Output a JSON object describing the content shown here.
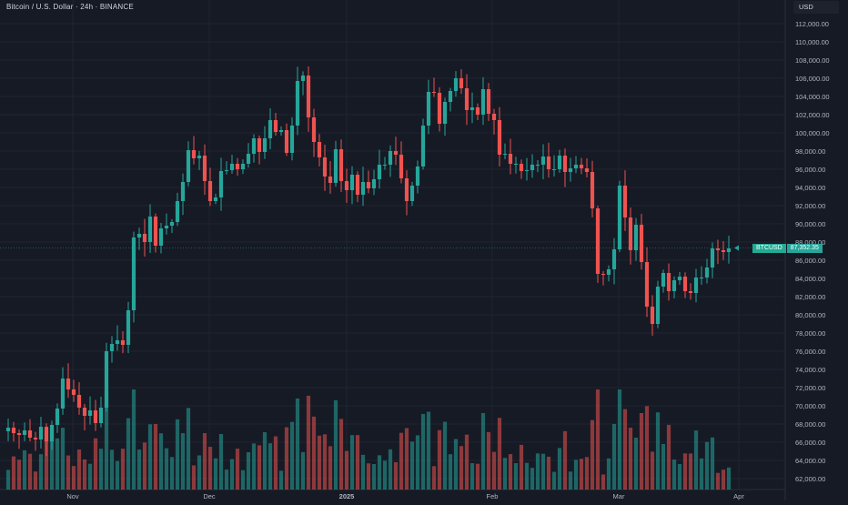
{
  "header": {
    "title": "Bitcoin / U.S. Dollar · 24h · BINANCE",
    "currency": "USD"
  },
  "price_tag": {
    "symbol": "BTCUSD",
    "value": "87,352.35"
  },
  "colors": {
    "background": "#161a25",
    "up": "#26a69a",
    "down": "#ef5350",
    "grid": "#1f2431",
    "text": "#d1d4dc"
  },
  "chart_data": {
    "type": "candlestick",
    "y_ticks": [
      "112,000.00",
      "110,000.00",
      "108,000.00",
      "106,000.00",
      "104,000.00",
      "102,000.00",
      "100,000.00",
      "98,000.00",
      "96,000.00",
      "94,000.00",
      "92,000.00",
      "90,000.00",
      "88,000.00",
      "86,000.00",
      "84,000.00",
      "82,000.00",
      "80,000.00",
      "78,000.00",
      "76,000.00",
      "74,000.00",
      "72,000.00",
      "70,000.00",
      "68,000.00",
      "66,000.00",
      "64,000.00",
      "62,000.00"
    ],
    "x_ticks": [
      "Nov",
      "Dec",
      "2025",
      "Feb",
      "Mar",
      "Apr"
    ],
    "last_price": 87352.35,
    "closes": [
      67200,
      67600,
      67000,
      66800,
      67300,
      66500,
      66300,
      67700,
      66100,
      67900,
      69700,
      73000,
      71800,
      71200,
      69800,
      68900,
      69500,
      68100,
      69800,
      76000,
      76800,
      77200,
      76700,
      80500,
      88500,
      88900,
      88000,
      90800,
      87600,
      89500,
      89800,
      90200,
      92500,
      94600,
      98100,
      97200,
      97500,
      94700,
      92500,
      92900,
      95800,
      95900,
      96600,
      96000,
      96600,
      97700,
      99400,
      97900,
      99400,
      101400,
      100100,
      100300,
      97800,
      100800,
      105700,
      106300,
      101700,
      99000,
      97300,
      95200,
      94500,
      98200,
      94700,
      93700,
      95400,
      93200,
      94600,
      93900,
      94900,
      96500,
      96500,
      98000,
      97600,
      95000,
      92500,
      94200,
      96300,
      100800,
      104500,
      104400,
      101000,
      103400,
      104600,
      106000,
      104900,
      102500,
      102800,
      102000,
      104800,
      102100,
      101400,
      97600,
      97700,
      96600,
      96600,
      95800,
      95900,
      96500,
      96500,
      97400,
      96000,
      96000,
      97500,
      95700,
      96100,
      96500,
      96100,
      95700,
      91700,
      84500,
      84400,
      85000,
      87200,
      94200,
      90700,
      87100,
      89900,
      85800,
      80900,
      79000,
      83100,
      84600,
      82600,
      83800,
      84200,
      82600,
      82400,
      84100,
      84100,
      85200,
      87300,
      87100,
      86900,
      87300
    ]
  }
}
